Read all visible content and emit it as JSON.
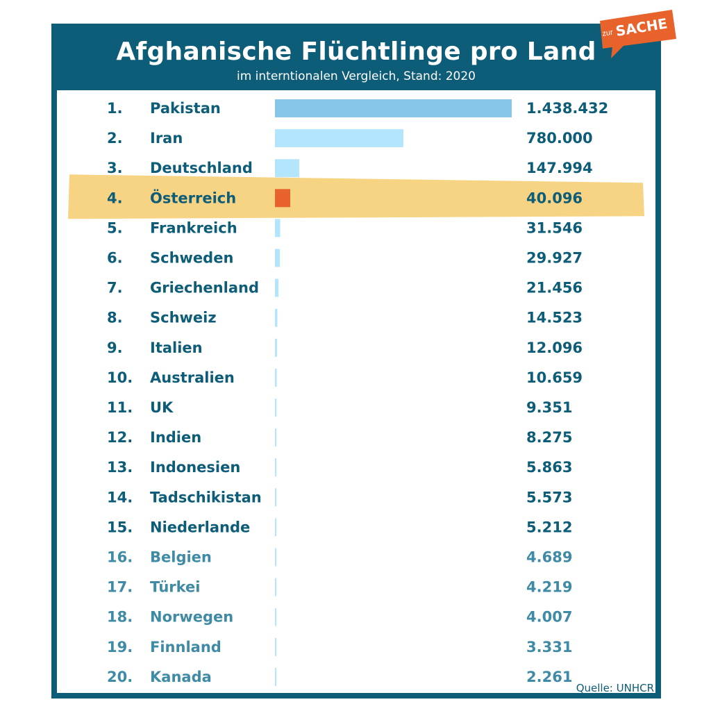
{
  "header": {
    "title": "Afghanische Flüchtlinge pro Land",
    "subtitle": "im interntionalen Vergleich, Stand: 2020"
  },
  "logo": {
    "small": "zur",
    "big": "SACHE",
    "icon": "speech-bubble-icon"
  },
  "source": "Quelle: UNHCR",
  "colors": {
    "frame": "#0d5c78",
    "text_dark": "#0d5c78",
    "text_light": "#3f8aa5",
    "bar_top": "#86c6e8",
    "bar": "#b3e5fc",
    "bar_highlight": "#e8622c",
    "highlight_band": "#f6cd6d",
    "logo": "#e8622c"
  },
  "chart_data": {
    "type": "bar",
    "orientation": "horizontal",
    "title": "Afghanische Flüchtlinge pro Land",
    "subtitle": "im interntionalen Vergleich, Stand: 2020",
    "xlabel": "",
    "ylabel": "",
    "xlim": [
      0,
      1438432
    ],
    "highlight": "Österreich",
    "ranks": [
      "1.",
      "2.",
      "3.",
      "4.",
      "5.",
      "6.",
      "7.",
      "8.",
      "9.",
      "10.",
      "11.",
      "12.",
      "13.",
      "14.",
      "15.",
      "16.",
      "17.",
      "18.",
      "19.",
      "20."
    ],
    "categories": [
      "Pakistan",
      "Iran",
      "Deutschland",
      "Österreich",
      "Frankreich",
      "Schweden",
      "Griechenland",
      "Schweiz",
      "Italien",
      "Australien",
      "UK",
      "Indien",
      "Indonesien",
      "Tadschikistan",
      "Niederlande",
      "Belgien",
      "Türkei",
      "Norwegen",
      "Finnland",
      "Kanada"
    ],
    "values": [
      1438432,
      780000,
      147994,
      40096,
      31546,
      29927,
      21456,
      14523,
      12096,
      10659,
      9351,
      8275,
      5863,
      5573,
      5212,
      4689,
      4219,
      4007,
      3331,
      2261
    ],
    "value_labels": [
      "1.438.432",
      "780.000",
      "147.994",
      "40.096",
      "31.546",
      "29.927",
      "21.456",
      "14.523",
      "12.096",
      "10.659",
      "9.351",
      "8.275",
      "5.863",
      "5.573",
      "5.212",
      "4.689",
      "4.219",
      "4.007",
      "3.331",
      "2.261"
    ]
  }
}
